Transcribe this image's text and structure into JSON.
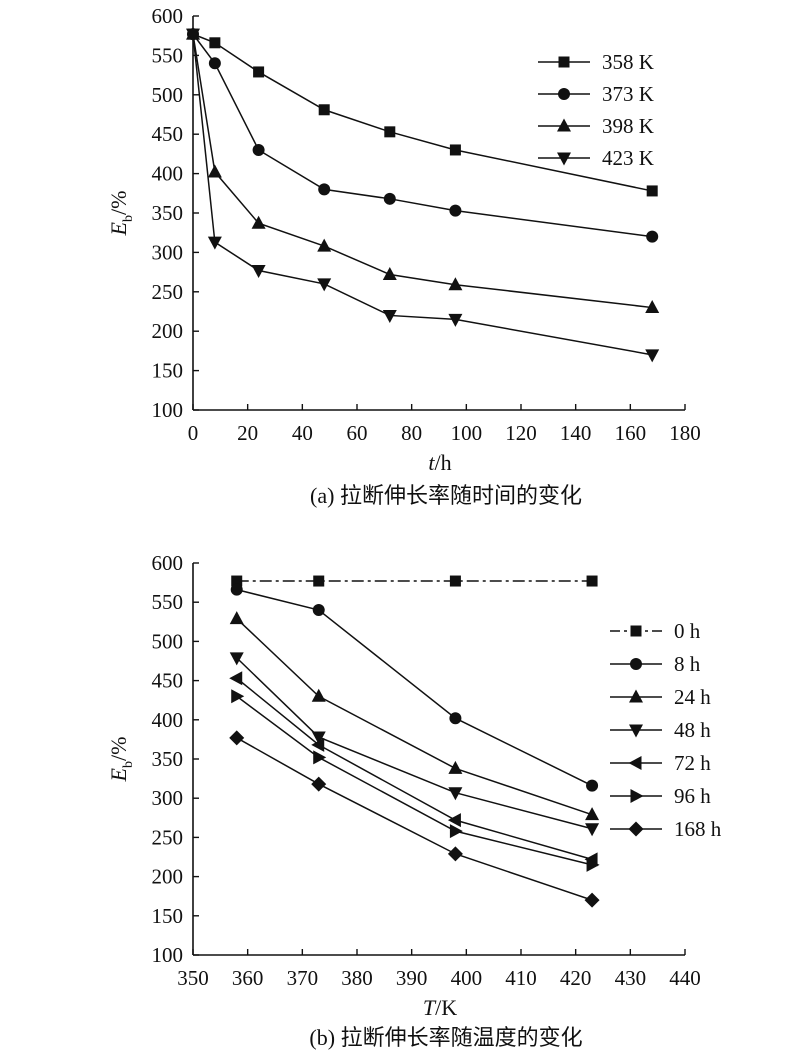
{
  "chart_data": [
    {
      "type": "line",
      "caption": "(a) 拉断伸长率随时间的变化",
      "xlabel": {
        "var": "t",
        "unit": "/h"
      },
      "ylabel": {
        "var": "E",
        "sub": "b",
        "unit": "/%"
      },
      "xlim": [
        0,
        180
      ],
      "ylim": [
        100,
        600
      ],
      "xticks": [
        "0",
        "20",
        "40",
        "60",
        "80",
        "100",
        "120",
        "140",
        "160",
        "180"
      ],
      "yticks": [
        "100",
        "150",
        "200",
        "250",
        "300",
        "350",
        "400",
        "450",
        "500",
        "550",
        "600"
      ],
      "grid": false,
      "legend_position": "top-right",
      "series": [
        {
          "name": "358 K",
          "marker": "square",
          "line": "solid",
          "x": [
            0,
            8,
            24,
            48,
            72,
            96,
            168
          ],
          "y": [
            577,
            566,
            529,
            481,
            453,
            430,
            378
          ]
        },
        {
          "name": "373 K",
          "marker": "circle",
          "line": "solid",
          "x": [
            0,
            8,
            24,
            48,
            72,
            96,
            168
          ],
          "y": [
            577,
            540,
            430,
            380,
            368,
            353,
            320
          ]
        },
        {
          "name": "398 K",
          "marker": "triangle-up",
          "line": "solid",
          "x": [
            0,
            8,
            24,
            48,
            72,
            96,
            168
          ],
          "y": [
            577,
            402,
            337,
            308,
            272,
            259,
            230
          ]
        },
        {
          "name": "423 K",
          "marker": "triangle-down",
          "line": "solid",
          "x": [
            0,
            8,
            24,
            48,
            72,
            96,
            168
          ],
          "y": [
            577,
            313,
            277,
            260,
            220,
            215,
            170
          ]
        }
      ]
    },
    {
      "type": "line",
      "caption": "(b) 拉断伸长率随温度的变化",
      "xlabel": {
        "var": "T",
        "unit": "/K"
      },
      "ylabel": {
        "var": "E",
        "sub": "b",
        "unit": "/%"
      },
      "xlim": [
        350,
        440
      ],
      "ylim": [
        100,
        600
      ],
      "xticks": [
        "350",
        "360",
        "370",
        "380",
        "390",
        "400",
        "410",
        "420",
        "430",
        "440"
      ],
      "yticks": [
        "100",
        "150",
        "200",
        "250",
        "300",
        "350",
        "400",
        "450",
        "500",
        "550",
        "600"
      ],
      "grid": false,
      "legend_position": "right",
      "series": [
        {
          "name": "0 h",
          "marker": "square",
          "line": "dashdot",
          "x": [
            358,
            373,
            398,
            423
          ],
          "y": [
            577,
            577,
            577,
            577
          ]
        },
        {
          "name": "8 h",
          "marker": "circle",
          "line": "solid",
          "x": [
            358,
            373,
            398,
            423
          ],
          "y": [
            566,
            540,
            402,
            316
          ]
        },
        {
          "name": "24 h",
          "marker": "triangle-up",
          "line": "solid",
          "x": [
            358,
            373,
            398,
            423
          ],
          "y": [
            529,
            430,
            338,
            279
          ]
        },
        {
          "name": "48 h",
          "marker": "triangle-down",
          "line": "solid",
          "x": [
            358,
            373,
            398,
            423
          ],
          "y": [
            479,
            378,
            307,
            261
          ]
        },
        {
          "name": "72 h",
          "marker": "triangle-left",
          "line": "solid",
          "x": [
            358,
            373,
            398,
            423
          ],
          "y": [
            453,
            368,
            272,
            222
          ]
        },
        {
          "name": "96 h",
          "marker": "triangle-right",
          "line": "solid",
          "x": [
            358,
            373,
            398,
            423
          ],
          "y": [
            430,
            352,
            258,
            215
          ]
        },
        {
          "name": "168 h",
          "marker": "diamond",
          "line": "solid",
          "x": [
            358,
            373,
            398,
            423
          ],
          "y": [
            377,
            318,
            229,
            170
          ]
        }
      ]
    }
  ]
}
